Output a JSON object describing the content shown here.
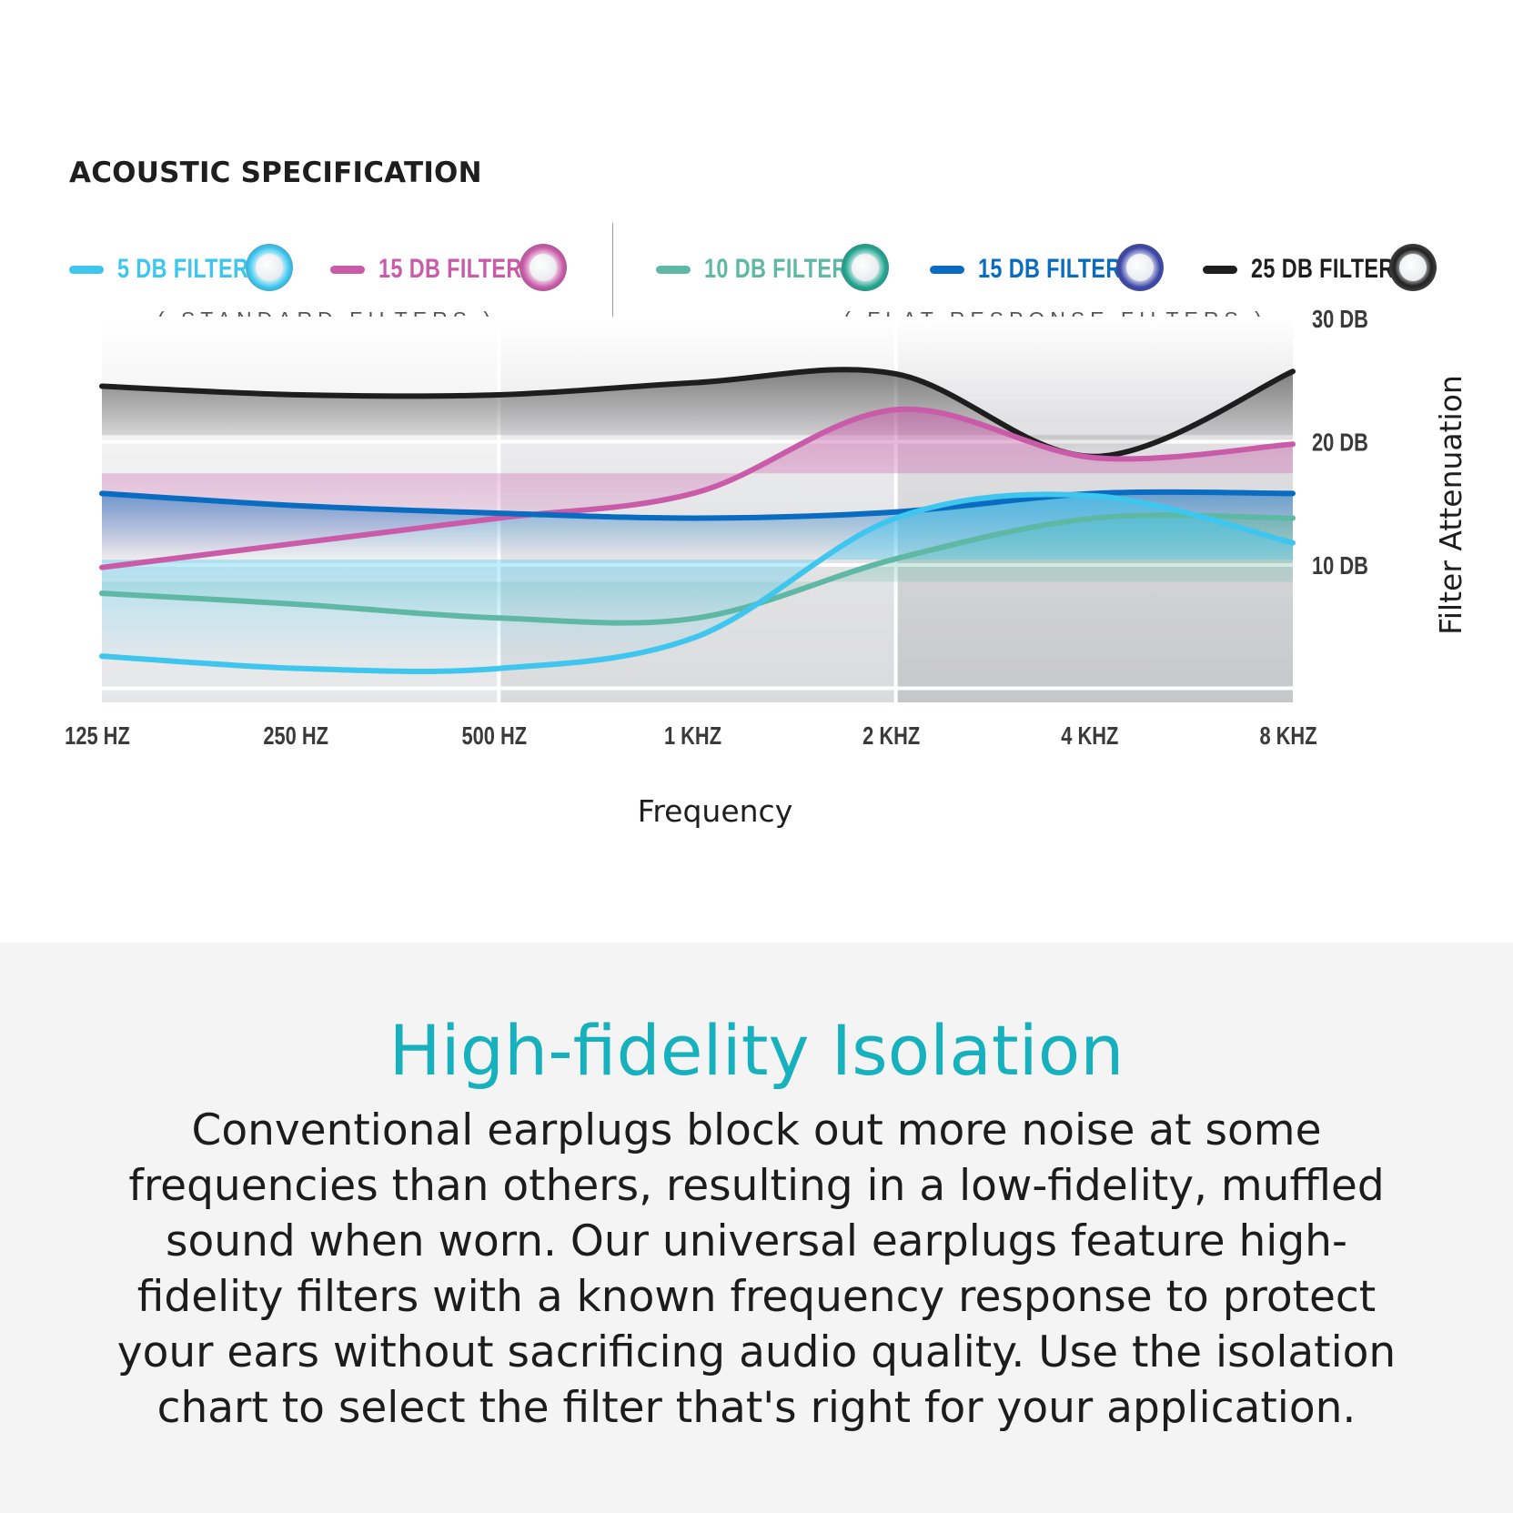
{
  "header": {
    "title": "ACOUSTIC SPECIFICATION"
  },
  "legend": {
    "standard_caption": "( STANDARD FILTERS )",
    "flat_caption": "( FLAT RESPONSE FILTERS )",
    "items": [
      {
        "label": "5 DB FILTER",
        "color": "#3ec6ef",
        "icon": "earplug-filter-icon"
      },
      {
        "label": "15 DB FILTER",
        "color": "#c95ba8",
        "icon": "earplug-filter-icon"
      },
      {
        "label": "10 DB FILTER",
        "color": "#5fb8a4",
        "icon": "earplug-filter-icon"
      },
      {
        "label": "15 DB FILTER",
        "color": "#0a6cc0",
        "icon": "earplug-filter-icon"
      },
      {
        "label": "25 DB FILTER",
        "color": "#1e1e1e",
        "icon": "earplug-filter-icon"
      }
    ]
  },
  "chart_data": {
    "type": "line",
    "x": [
      "125 HZ",
      "250 HZ",
      "500 HZ",
      "1 KHZ",
      "2 KHZ",
      "4 KHZ",
      "8 KHZ"
    ],
    "xlabel": "Frequency",
    "ylabel": "Filter Attenuation",
    "y_ticks": [
      {
        "value": 10,
        "label": "10 DB"
      },
      {
        "value": 20,
        "label": "20 DB"
      },
      {
        "value": 30,
        "label": "30 DB"
      }
    ],
    "ylim": [
      -1,
      30
    ],
    "legend_placement": "top",
    "series": [
      {
        "name": "25 DB FILTER",
        "color": "#1e1e1e",
        "values": [
          24.5,
          23.8,
          23.8,
          24.8,
          25.5,
          18.8,
          25.7
        ]
      },
      {
        "name": "15 DB FILTER",
        "color": "#c95ba8",
        "values": [
          9.8,
          11.8,
          13.8,
          15.9,
          22.6,
          18.7,
          19.8
        ]
      },
      {
        "name": "15 DB FILTER",
        "color": "#0a6cc0",
        "values": [
          15.8,
          14.8,
          14.2,
          13.8,
          14.3,
          15.8,
          15.8
        ]
      },
      {
        "name": "10 DB FILTER",
        "color": "#5fb8a4",
        "values": [
          7.7,
          6.8,
          5.7,
          5.7,
          10.5,
          13.8,
          13.8
        ]
      },
      {
        "name": "5 DB FILTER",
        "color": "#3ec6ef",
        "values": [
          2.6,
          1.6,
          1.6,
          4.2,
          13.8,
          15.6,
          11.8
        ]
      }
    ]
  },
  "section": {
    "headline": "High-fidelity Isolation",
    "body": "Conventional earplugs block out more noise at some frequencies than others, resulting in a low-fidelity, muffled sound when worn. Our universal earplugs feature high-fidelity filters with a known frequency response to protect your ears without sacrificing audio quality. Use the isolation chart to select the filter that's right for your application."
  }
}
